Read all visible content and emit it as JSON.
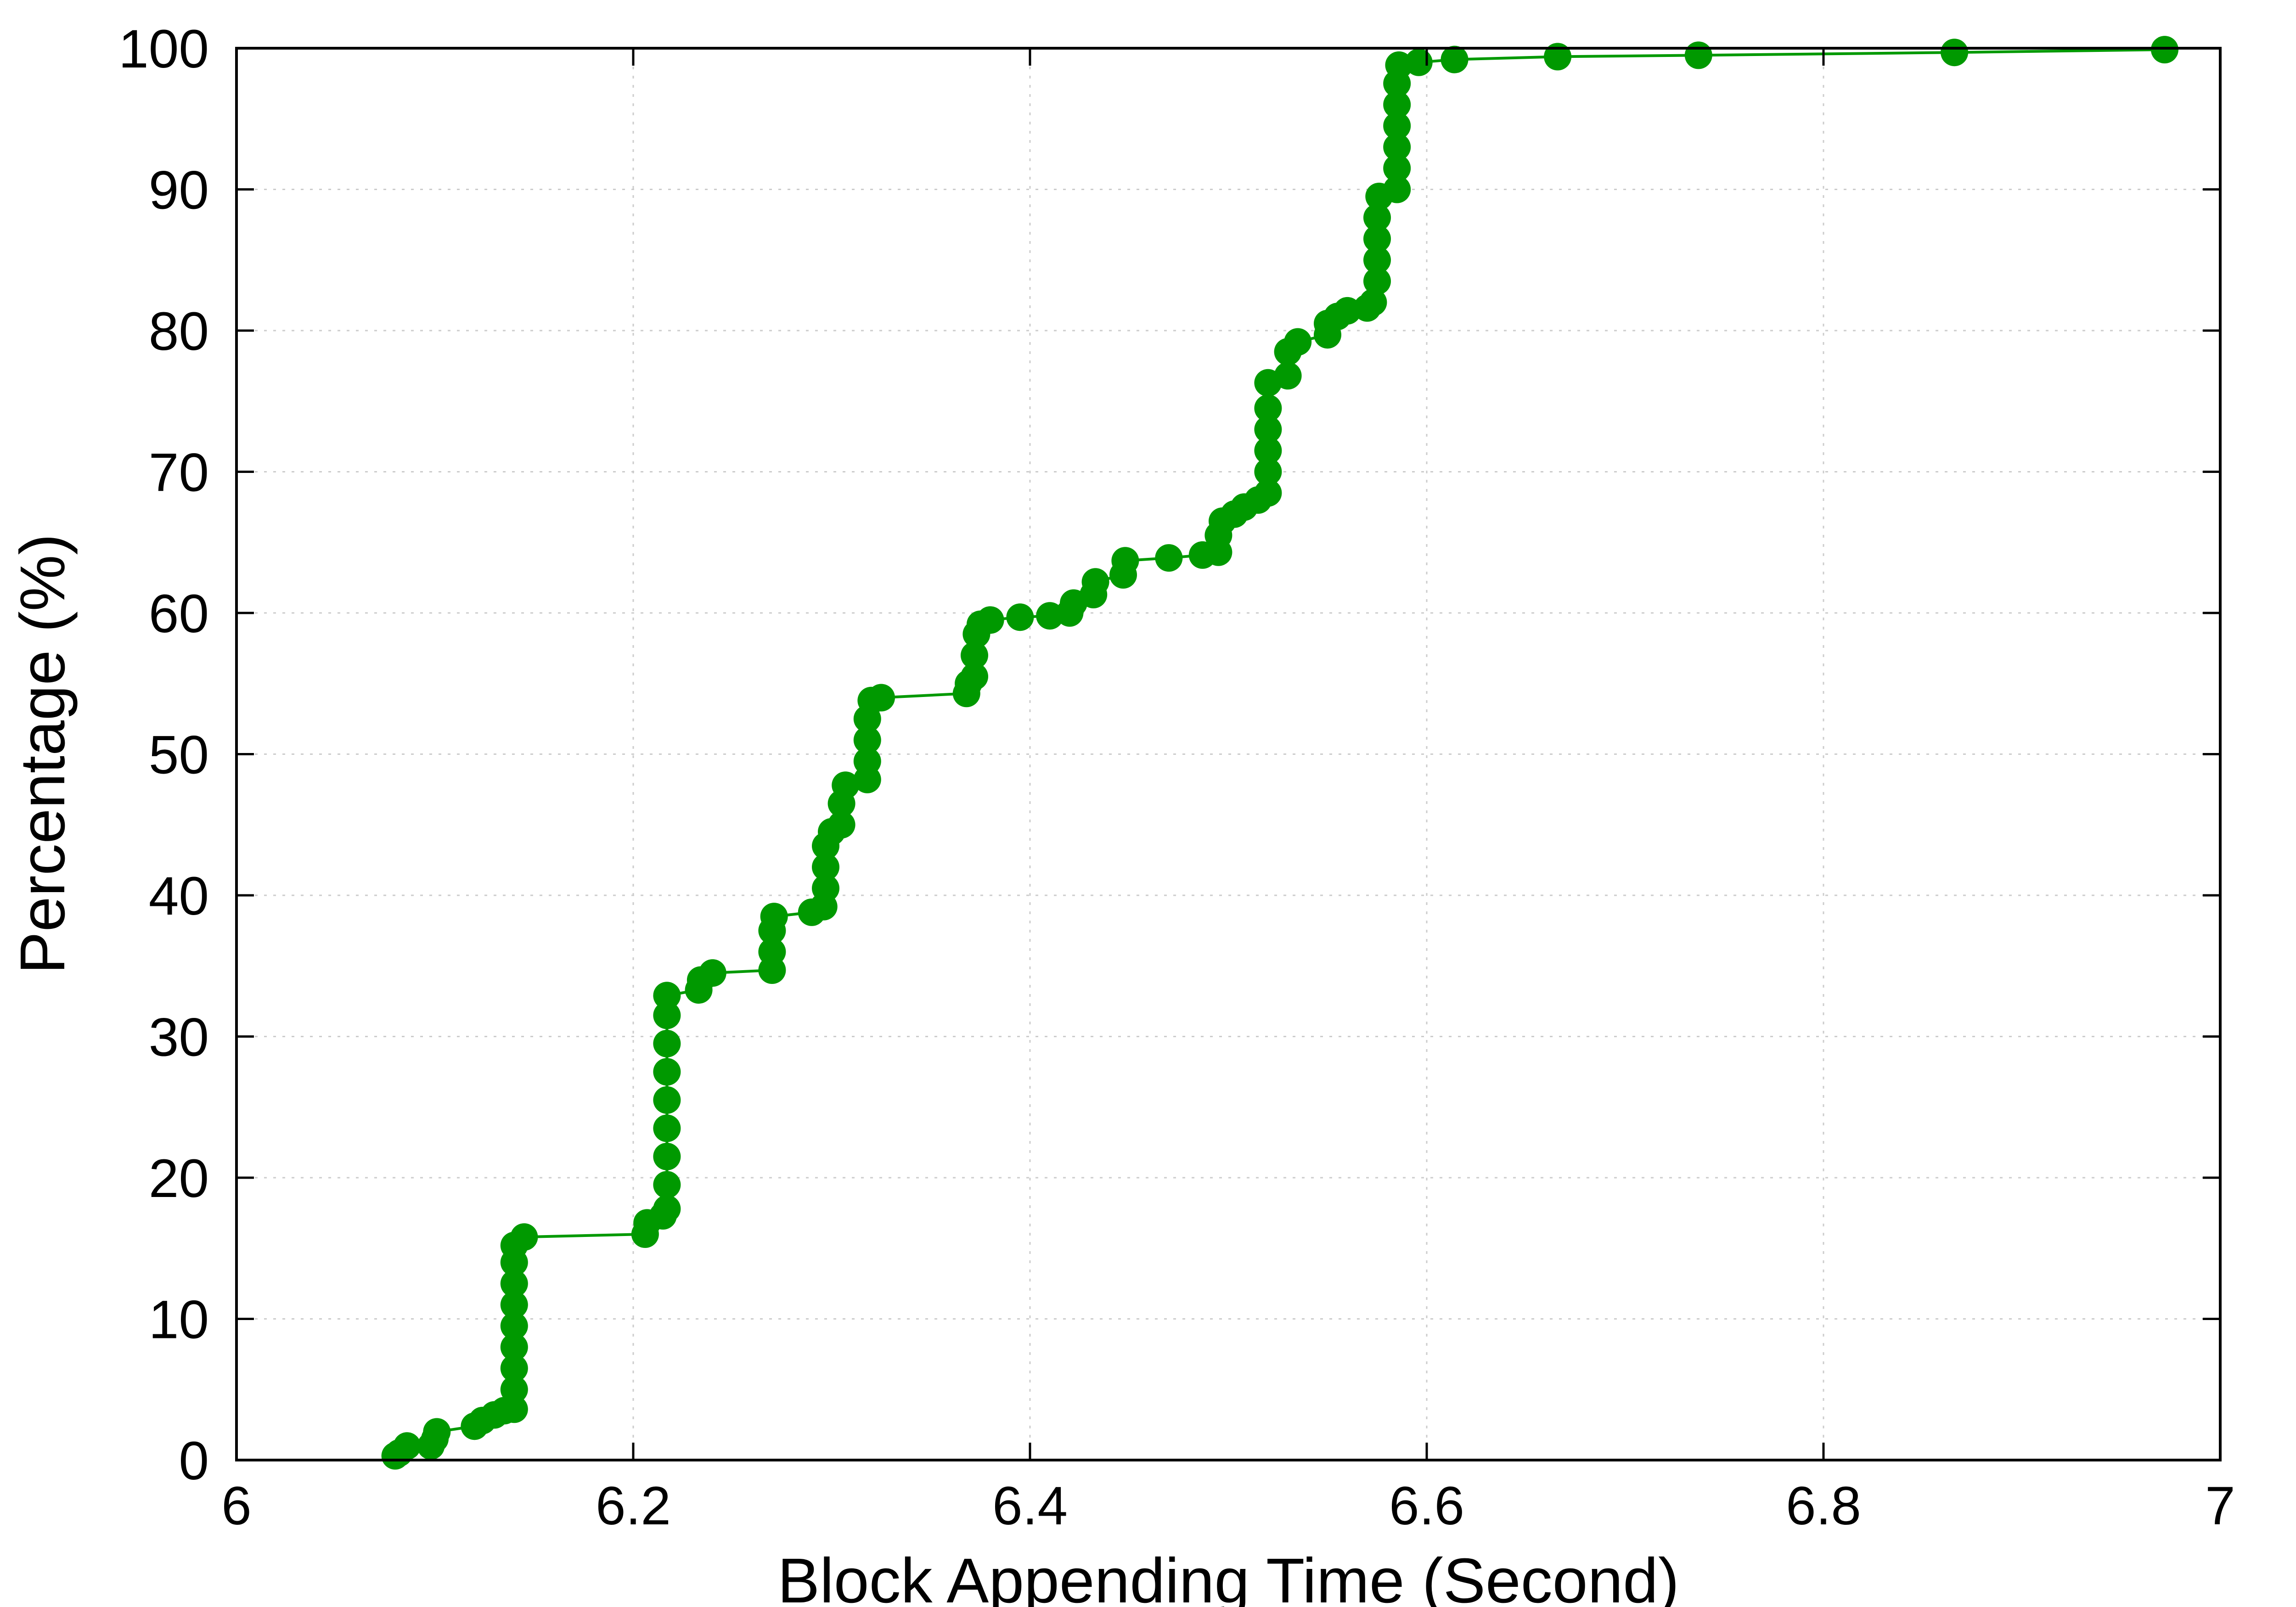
{
  "chart_data": {
    "type": "line",
    "title": "",
    "xlabel": "Block Appending Time (Second)",
    "ylabel": "Percentage (%)",
    "xlim": [
      6,
      7
    ],
    "ylim": [
      0,
      100
    ],
    "x_ticks": [
      "6",
      "6.2",
      "6.4",
      "6.6",
      "6.8",
      "7"
    ],
    "y_ticks": [
      "0",
      "10",
      "20",
      "30",
      "40",
      "50",
      "60",
      "70",
      "80",
      "90",
      "100"
    ],
    "grid": true,
    "grid_style": "dotted",
    "legend": "none",
    "marker": "filled-circle",
    "series": [
      {
        "color": "#009900",
        "points": [
          [
            6.08,
            0.3
          ],
          [
            6.082,
            0.5
          ],
          [
            6.086,
            1.0
          ],
          [
            6.098,
            1.0
          ],
          [
            6.1,
            1.5
          ],
          [
            6.101,
            2.0
          ],
          [
            6.12,
            2.4
          ],
          [
            6.124,
            2.8
          ],
          [
            6.13,
            3.2
          ],
          [
            6.135,
            3.5
          ],
          [
            6.14,
            3.6
          ],
          [
            6.14,
            5.0
          ],
          [
            6.14,
            6.5
          ],
          [
            6.14,
            8.0
          ],
          [
            6.14,
            9.5
          ],
          [
            6.14,
            11.0
          ],
          [
            6.14,
            12.5
          ],
          [
            6.14,
            14.0
          ],
          [
            6.14,
            15.2
          ],
          [
            6.145,
            15.8
          ],
          [
            6.206,
            16.0
          ],
          [
            6.207,
            16.8
          ],
          [
            6.215,
            17.3
          ],
          [
            6.217,
            17.8
          ],
          [
            6.217,
            19.5
          ],
          [
            6.217,
            21.5
          ],
          [
            6.217,
            23.5
          ],
          [
            6.217,
            25.5
          ],
          [
            6.217,
            27.5
          ],
          [
            6.217,
            29.5
          ],
          [
            6.217,
            31.5
          ],
          [
            6.217,
            32.9
          ],
          [
            6.233,
            33.3
          ],
          [
            6.234,
            34.0
          ],
          [
            6.24,
            34.5
          ],
          [
            6.27,
            34.7
          ],
          [
            6.27,
            36.0
          ],
          [
            6.27,
            37.5
          ],
          [
            6.271,
            38.5
          ],
          [
            6.29,
            38.8
          ],
          [
            6.296,
            39.2
          ],
          [
            6.297,
            40.5
          ],
          [
            6.297,
            42.0
          ],
          [
            6.297,
            43.5
          ],
          [
            6.3,
            44.5
          ],
          [
            6.305,
            45.0
          ],
          [
            6.305,
            46.5
          ],
          [
            6.307,
            47.8
          ],
          [
            6.318,
            48.2
          ],
          [
            6.318,
            49.5
          ],
          [
            6.318,
            51.0
          ],
          [
            6.318,
            52.5
          ],
          [
            6.32,
            53.8
          ],
          [
            6.325,
            54.0
          ],
          [
            6.368,
            54.3
          ],
          [
            6.369,
            55.0
          ],
          [
            6.372,
            55.5
          ],
          [
            6.372,
            57.0
          ],
          [
            6.373,
            58.5
          ],
          [
            6.375,
            59.2
          ],
          [
            6.38,
            59.5
          ],
          [
            6.395,
            59.7
          ],
          [
            6.41,
            59.8
          ],
          [
            6.42,
            60.0
          ],
          [
            6.422,
            60.7
          ],
          [
            6.432,
            61.3
          ],
          [
            6.433,
            62.2
          ],
          [
            6.447,
            62.7
          ],
          [
            6.448,
            63.7
          ],
          [
            6.47,
            63.9
          ],
          [
            6.487,
            64.1
          ],
          [
            6.495,
            64.3
          ],
          [
            6.495,
            65.5
          ],
          [
            6.497,
            66.5
          ],
          [
            6.503,
            67.0
          ],
          [
            6.508,
            67.5
          ],
          [
            6.515,
            68.0
          ],
          [
            6.52,
            68.5
          ],
          [
            6.52,
            70.0
          ],
          [
            6.52,
            71.5
          ],
          [
            6.52,
            73.0
          ],
          [
            6.52,
            74.5
          ],
          [
            6.52,
            76.3
          ],
          [
            6.53,
            76.8
          ],
          [
            6.53,
            78.5
          ],
          [
            6.535,
            79.2
          ],
          [
            6.55,
            79.7
          ],
          [
            6.55,
            80.5
          ],
          [
            6.555,
            81.0
          ],
          [
            6.56,
            81.4
          ],
          [
            6.57,
            81.6
          ],
          [
            6.573,
            82.0
          ],
          [
            6.575,
            83.5
          ],
          [
            6.575,
            85.0
          ],
          [
            6.575,
            86.5
          ],
          [
            6.575,
            88.0
          ],
          [
            6.576,
            89.5
          ],
          [
            6.585,
            90.0
          ],
          [
            6.585,
            91.5
          ],
          [
            6.585,
            93.0
          ],
          [
            6.585,
            94.5
          ],
          [
            6.585,
            96.0
          ],
          [
            6.585,
            97.5
          ],
          [
            6.586,
            98.8
          ],
          [
            6.596,
            99.0
          ],
          [
            6.614,
            99.2
          ],
          [
            6.666,
            99.4
          ],
          [
            6.737,
            99.5
          ],
          [
            6.866,
            99.7
          ],
          [
            6.972,
            99.9
          ]
        ]
      }
    ]
  }
}
